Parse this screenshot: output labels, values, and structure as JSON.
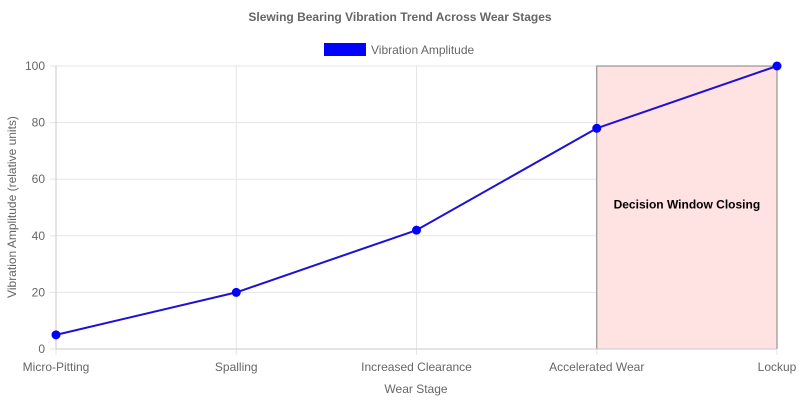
{
  "chart_data": {
    "type": "line",
    "title": "Slewing Bearing Vibration Trend Across Wear Stages",
    "xlabel": "Wear Stage",
    "ylabel": "Vibration Amplitude (relative units)",
    "categories": [
      "Micro-Pitting",
      "Spalling",
      "Increased Clearance",
      "Accelerated Wear",
      "Lockup"
    ],
    "ylim": [
      0,
      100
    ],
    "yticks": [
      0,
      20,
      40,
      60,
      80,
      100
    ],
    "grid": true,
    "legend_position": "top",
    "series": [
      {
        "name": "Vibration Amplitude",
        "values": [
          5,
          20,
          42,
          78,
          100
        ],
        "color": "#0000ff",
        "line_color": "#1f10d6"
      }
    ],
    "annotations": [
      {
        "type": "box",
        "label": "Decision Window Closing",
        "x_from": "Accelerated Wear",
        "x_to": "Lockup",
        "y_from": 0,
        "y_to": 100,
        "fill": "#ffe2e2",
        "border": "#808080"
      }
    ]
  }
}
